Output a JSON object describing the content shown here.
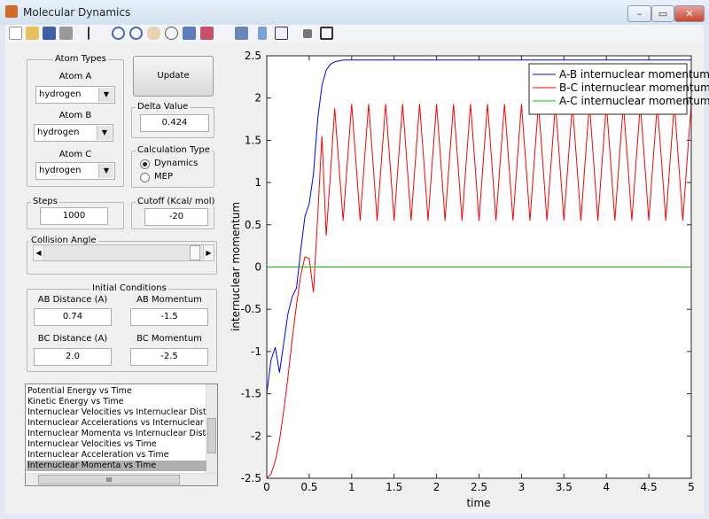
{
  "window": {
    "title": "Molecular Dynamics"
  },
  "atom_types": {
    "title": "Atom Types",
    "atoms": [
      {
        "label": "Atom A",
        "value": "hydrogen"
      },
      {
        "label": "Atom B",
        "value": "hydrogen"
      },
      {
        "label": "Atom C",
        "value": "hydrogen"
      }
    ]
  },
  "update_button": "Update",
  "delta": {
    "title": "Delta Value",
    "value": "0.424"
  },
  "calc_type": {
    "title": "Calculation Type",
    "options": [
      "Dynamics",
      "MEP"
    ]
  },
  "steps": {
    "title": "Steps",
    "value": "1000"
  },
  "cutoff": {
    "title": "Cutoff (Kcal/ mol)",
    "value": "-20"
  },
  "collision_angle": {
    "title": "Collision Angle"
  },
  "initial_conditions": {
    "title": "Initial Conditions",
    "fields": [
      {
        "label": "AB Distance (A)",
        "value": "0.74"
      },
      {
        "label": "AB Momentum",
        "value": "-1.5"
      },
      {
        "label": "BC Distance (A)",
        "value": "2.0"
      },
      {
        "label": "BC Momentum",
        "value": "-2.5"
      }
    ]
  },
  "plot_list": {
    "items": [
      "Potential Energy vs Time",
      "Kinetic Energy vs Time",
      "Internuclear Velocities vs Internuclear Distance",
      "Internuclear Accelerations vs Internuclear Dista",
      "Internuclear Momenta vs Internuclear Distance",
      "Internuclear Velocities vs Time",
      "Internuclear Acceleration vs Time",
      "Internuclear Momenta vs Time"
    ],
    "selected": "Internuclear Momenta vs Time",
    "hscroll": "III"
  },
  "chart_data": {
    "type": "line",
    "xlabel": "time",
    "ylabel": "internuclear momentum",
    "xlim": [
      0,
      5
    ],
    "ylim": [
      -2.5,
      2.5
    ],
    "xticks": [
      0,
      0.5,
      1,
      1.5,
      2,
      2.5,
      3,
      3.5,
      4,
      4.5,
      5
    ],
    "yticks": [
      -2.5,
      -2,
      -1.5,
      -1,
      -0.5,
      0,
      0.5,
      1,
      1.5,
      2,
      2.5
    ],
    "legend": "upper right",
    "x": [
      0,
      0.05,
      0.1,
      0.15,
      0.2,
      0.25,
      0.3,
      0.35,
      0.4,
      0.45,
      0.5,
      0.55,
      0.6,
      0.65,
      0.7,
      0.75,
      0.8,
      0.85,
      0.9,
      0.95,
      1,
      1.05,
      1.1,
      1.15,
      1.2,
      1.25,
      1.3,
      1.35,
      1.4,
      1.45,
      1.5,
      1.55,
      1.6,
      1.65,
      1.7,
      1.75,
      1.8,
      1.85,
      1.9,
      1.95,
      2,
      2.05,
      2.1,
      2.15,
      2.2,
      2.25,
      2.3,
      2.35,
      2.4,
      2.45,
      2.5,
      2.55,
      2.6,
      2.65,
      2.7,
      2.75,
      2.8,
      2.85,
      2.9,
      2.95,
      3,
      3.05,
      3.1,
      3.15,
      3.2,
      3.25,
      3.3,
      3.35,
      3.4,
      3.45,
      3.5,
      3.55,
      3.6,
      3.65,
      3.7,
      3.75,
      3.8,
      3.85,
      3.9,
      3.95,
      4,
      4.05,
      4.1,
      4.15,
      4.2,
      4.25,
      4.3,
      4.35,
      4.4,
      4.45,
      4.5,
      4.55,
      4.6,
      4.65,
      4.7,
      4.75,
      4.8,
      4.85,
      4.9,
      4.95,
      5
    ],
    "series": [
      {
        "name": "A-B internuclear momentum",
        "color": "#0000ff",
        "values": [
          -1.5,
          -1.1,
          -0.95,
          -1.25,
          -0.9,
          -0.55,
          -0.35,
          -0.25,
          0.2,
          0.6,
          0.75,
          1.1,
          1.75,
          2.15,
          2.33,
          2.4,
          2.43,
          2.44,
          2.45,
          2.45,
          2.45,
          2.45,
          2.45,
          2.45,
          2.45,
          2.45,
          2.45,
          2.45,
          2.45,
          2.45,
          2.45,
          2.45,
          2.45,
          2.45,
          2.45,
          2.45,
          2.45,
          2.45,
          2.45,
          2.45,
          2.45,
          2.45,
          2.45,
          2.45,
          2.45,
          2.45,
          2.45,
          2.45,
          2.45,
          2.45,
          2.45,
          2.45,
          2.45,
          2.45,
          2.45,
          2.45,
          2.45,
          2.45,
          2.45,
          2.45,
          2.45,
          2.45,
          2.45,
          2.45,
          2.45,
          2.45,
          2.45,
          2.45,
          2.45,
          2.45,
          2.45,
          2.45,
          2.45,
          2.45,
          2.45,
          2.45,
          2.45,
          2.45,
          2.45,
          2.45,
          2.45,
          2.45,
          2.45,
          2.45,
          2.45,
          2.45,
          2.45,
          2.45,
          2.45,
          2.45,
          2.45,
          2.45,
          2.45,
          2.45,
          2.45,
          2.45,
          2.45,
          2.45,
          2.45,
          2.45,
          2.45
        ]
      },
      {
        "name": "B-C internuclear momentum",
        "color": "#ff0000",
        "values": [
          -2.5,
          -2.45,
          -2.3,
          -2.05,
          -1.7,
          -1.3,
          -0.85,
          -0.45,
          -0.1,
          0.12,
          0.1,
          -0.3,
          0.6,
          1.55,
          0.37,
          1.1,
          1.88,
          1.2,
          0.55,
          1.25,
          1.93,
          1.25,
          0.55,
          1.25,
          1.93,
          1.25,
          0.55,
          1.25,
          1.93,
          1.25,
          0.55,
          1.25,
          1.93,
          1.25,
          0.55,
          1.25,
          1.93,
          1.25,
          0.55,
          1.25,
          1.93,
          1.25,
          0.55,
          1.25,
          1.93,
          1.25,
          0.55,
          1.25,
          1.93,
          1.25,
          0.55,
          1.25,
          1.93,
          1.25,
          0.55,
          1.25,
          1.93,
          1.25,
          0.55,
          1.25,
          1.93,
          1.25,
          0.55,
          1.25,
          1.93,
          1.25,
          0.55,
          1.25,
          1.93,
          1.25,
          0.55,
          1.25,
          1.93,
          1.25,
          0.55,
          1.25,
          1.93,
          1.25,
          0.55,
          1.25,
          1.93,
          1.25,
          0.55,
          1.25,
          1.93,
          1.25,
          0.55,
          1.25,
          1.93,
          1.25,
          0.55,
          1.25,
          1.93,
          1.25,
          0.55,
          1.25,
          1.93,
          1.25,
          0.55,
          1.25,
          1.93
        ]
      },
      {
        "name": "A-C internuclear momentum",
        "color": "#00cc00",
        "values": [
          0,
          0,
          0,
          0,
          0,
          0,
          0,
          0,
          0,
          0,
          0,
          0,
          0,
          0,
          0,
          0,
          0,
          0,
          0,
          0,
          0,
          0,
          0,
          0,
          0,
          0,
          0,
          0,
          0,
          0,
          0,
          0,
          0,
          0,
          0,
          0,
          0,
          0,
          0,
          0,
          0,
          0,
          0,
          0,
          0,
          0,
          0,
          0,
          0,
          0,
          0,
          0,
          0,
          0,
          0,
          0,
          0,
          0,
          0,
          0,
          0,
          0,
          0,
          0,
          0,
          0,
          0,
          0,
          0,
          0,
          0,
          0,
          0,
          0,
          0,
          0,
          0,
          0,
          0,
          0,
          0,
          0,
          0,
          0,
          0,
          0,
          0,
          0,
          0,
          0,
          0,
          0,
          0,
          0,
          0,
          0,
          0,
          0,
          0,
          0,
          0
        ]
      }
    ]
  }
}
